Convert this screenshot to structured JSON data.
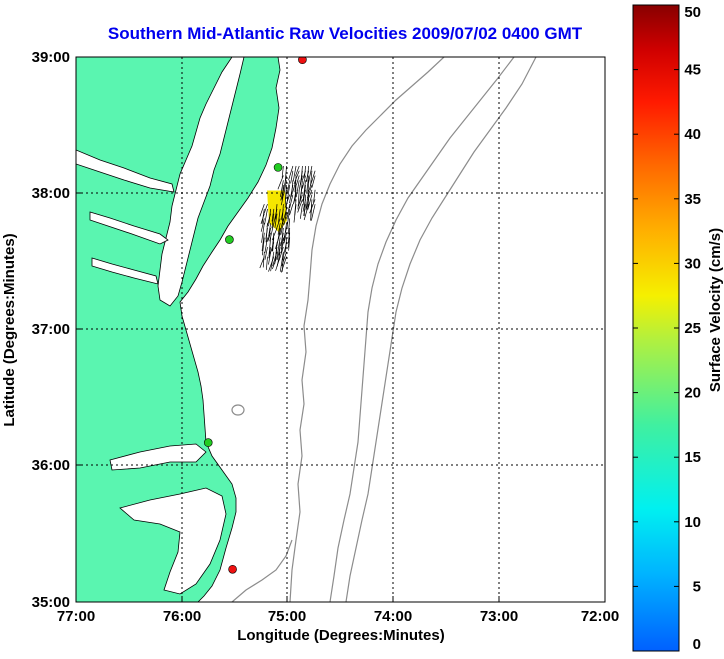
{
  "title": "Southern Mid-Atlantic Raw Velocities 2009/07/02 0400 GMT",
  "xlabel": "Longitude (Degrees:Minutes)",
  "ylabel": "Latitude (Degrees:Minutes)",
  "colorbar_label": "Surface Velocity (cm/s)",
  "x_ticks": [
    "77:00",
    "76:00",
    "75:00",
    "74:00",
    "73:00",
    "72:00"
  ],
  "y_ticks": [
    "39:00",
    "38:00",
    "37:00",
    "36:00",
    "35:00"
  ],
  "colorbar_ticks": [
    "50",
    "45",
    "40",
    "35",
    "30",
    "25",
    "20",
    "15",
    "10",
    "5",
    "0"
  ],
  "colors": {
    "title": "#0000ee",
    "land": "#5af5b0",
    "contour": "#8c8c8c",
    "station_green": "#22cc22",
    "station_red": "#ee1111",
    "vector": "#000000",
    "high_speed_patch": "#f5e600"
  },
  "chart_data": {
    "type": "map",
    "xlim": [
      -77,
      -72
    ],
    "ylim": [
      35,
      39
    ],
    "colorbar_range": [
      0,
      50
    ],
    "grid": true,
    "stations": [
      {
        "lon": -74.86,
        "lat": 38.98,
        "color": "red"
      },
      {
        "lon": -75.09,
        "lat": 38.19,
        "color": "green"
      },
      {
        "lon": -75.55,
        "lat": 37.66,
        "color": "green"
      },
      {
        "lon": -75.75,
        "lat": 36.17,
        "color": "green"
      },
      {
        "lon": -75.52,
        "lat": 35.24,
        "color": "red"
      }
    ],
    "velocity_field": {
      "lon_range": [
        -75.25,
        -74.72
      ],
      "lat_range": [
        37.5,
        38.2
      ],
      "magnitude_range_cm_s": [
        15,
        30
      ]
    }
  }
}
